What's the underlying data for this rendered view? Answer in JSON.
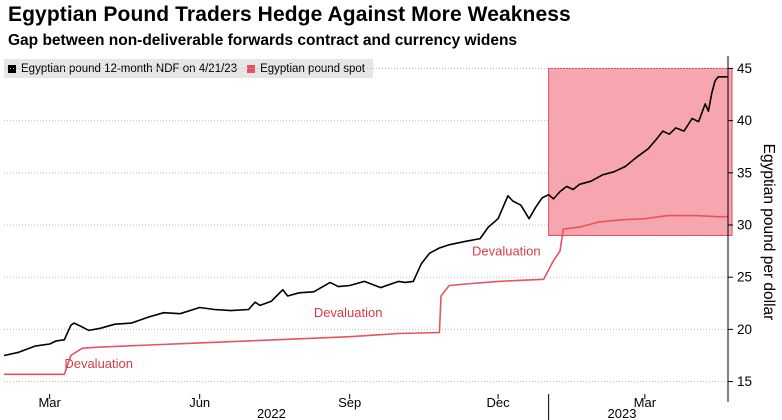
{
  "header": {
    "title": "Egyptian Pound Traders Hedge Against More Weakness",
    "subtitle": "Gap between non-deliverable forwards contract and currency widens"
  },
  "legend": {
    "items": [
      {
        "label": "Egyptian pound 12-month NDF on 4/21/23",
        "color": "#000000"
      },
      {
        "label": "Egyptian pound spot",
        "color": "#e8545e"
      }
    ]
  },
  "chart_data": {
    "type": "line",
    "title": "Egyptian Pound Traders Hedge Against More Weakness",
    "subtitle": "Gap between non-deliverable forwards contract and currency widens",
    "xlabel": "",
    "ylabel": "Egyptian pound per dollar",
    "x_range": [
      "2022-02-01",
      "2023-04-21"
    ],
    "ylim": [
      14,
      46
    ],
    "yticks": [
      15,
      20,
      25,
      30,
      35,
      40,
      45
    ],
    "grid": true,
    "xticks": [
      {
        "date": "2022-03-01",
        "label": "Mar"
      },
      {
        "date": "2022-06-01",
        "label": "Jun"
      },
      {
        "date": "2022-09-01",
        "label": "Sep"
      },
      {
        "date": "2022-12-01",
        "label": "Dec"
      },
      {
        "date": "2023-03-01",
        "label": "Mar"
      }
    ],
    "year_labels": [
      {
        "date": "2022-07-15",
        "label": "2022"
      },
      {
        "date": "2023-02-15",
        "label": "2023"
      }
    ],
    "year_separator": "2023-01-01",
    "highlight": {
      "x_start": "2023-01-01",
      "x_end": "2023-04-21",
      "y_min": 29,
      "y_max": 45,
      "color": "#f26b7a"
    },
    "annotations": [
      {
        "text": "Devaluation",
        "date": "2022-03-10",
        "y": 16.3
      },
      {
        "text": "Devaluation",
        "date": "2022-08-10",
        "y": 21.2
      },
      {
        "text": "Devaluation",
        "date": "2022-11-15",
        "y": 27.1
      }
    ],
    "series": [
      {
        "name": "Egyptian pound 12-month NDF on 4/21/23",
        "color": "#000000",
        "points": [
          [
            "2022-02-01",
            17.5
          ],
          [
            "2022-02-10",
            17.8
          ],
          [
            "2022-02-20",
            18.4
          ],
          [
            "2022-03-01",
            18.6
          ],
          [
            "2022-03-05",
            18.9
          ],
          [
            "2022-03-10",
            19.0
          ],
          [
            "2022-03-14",
            20.4
          ],
          [
            "2022-03-16",
            20.6
          ],
          [
            "2022-03-20",
            20.3
          ],
          [
            "2022-03-25",
            19.9
          ],
          [
            "2022-04-01",
            20.1
          ],
          [
            "2022-04-10",
            20.5
          ],
          [
            "2022-04-20",
            20.6
          ],
          [
            "2022-05-01",
            21.2
          ],
          [
            "2022-05-10",
            21.6
          ],
          [
            "2022-05-20",
            21.5
          ],
          [
            "2022-06-01",
            22.1
          ],
          [
            "2022-06-10",
            21.9
          ],
          [
            "2022-06-20",
            21.8
          ],
          [
            "2022-07-01",
            21.9
          ],
          [
            "2022-07-05",
            22.6
          ],
          [
            "2022-07-08",
            22.3
          ],
          [
            "2022-07-15",
            22.7
          ],
          [
            "2022-07-22",
            23.8
          ],
          [
            "2022-07-25",
            23.2
          ],
          [
            "2022-08-01",
            23.5
          ],
          [
            "2022-08-10",
            23.6
          ],
          [
            "2022-08-20",
            24.5
          ],
          [
            "2022-08-25",
            24.1
          ],
          [
            "2022-09-01",
            24.2
          ],
          [
            "2022-09-10",
            24.6
          ],
          [
            "2022-09-20",
            24.0
          ],
          [
            "2022-10-01",
            24.6
          ],
          [
            "2022-10-05",
            24.5
          ],
          [
            "2022-10-10",
            24.6
          ],
          [
            "2022-10-15",
            26.3
          ],
          [
            "2022-10-20",
            27.3
          ],
          [
            "2022-10-26",
            27.8
          ],
          [
            "2022-11-01",
            28.1
          ],
          [
            "2022-11-10",
            28.4
          ],
          [
            "2022-11-20",
            28.7
          ],
          [
            "2022-11-25",
            29.8
          ],
          [
            "2022-12-01",
            30.6
          ],
          [
            "2022-12-07",
            32.8
          ],
          [
            "2022-12-10",
            32.3
          ],
          [
            "2022-12-15",
            31.9
          ],
          [
            "2022-12-20",
            30.6
          ],
          [
            "2022-12-24",
            31.7
          ],
          [
            "2022-12-28",
            32.6
          ],
          [
            "2023-01-01",
            32.9
          ],
          [
            "2023-01-04",
            32.5
          ],
          [
            "2023-01-08",
            33.2
          ],
          [
            "2023-01-12",
            33.7
          ],
          [
            "2023-01-16",
            33.4
          ],
          [
            "2023-01-20",
            33.9
          ],
          [
            "2023-01-27",
            34.2
          ],
          [
            "2023-02-03",
            34.8
          ],
          [
            "2023-02-10",
            35.1
          ],
          [
            "2023-02-17",
            35.6
          ],
          [
            "2023-02-24",
            36.5
          ],
          [
            "2023-03-03",
            37.3
          ],
          [
            "2023-03-08",
            38.2
          ],
          [
            "2023-03-12",
            39.0
          ],
          [
            "2023-03-16",
            38.7
          ],
          [
            "2023-03-20",
            39.3
          ],
          [
            "2023-03-25",
            39.0
          ],
          [
            "2023-03-30",
            40.2
          ],
          [
            "2023-04-03",
            39.9
          ],
          [
            "2023-04-07",
            41.6
          ],
          [
            "2023-04-09",
            40.9
          ],
          [
            "2023-04-11",
            42.6
          ],
          [
            "2023-04-13",
            43.8
          ],
          [
            "2023-04-15",
            44.2
          ],
          [
            "2023-04-21",
            44.2
          ]
        ]
      },
      {
        "name": "Egyptian pound spot",
        "color": "#e8545e",
        "points": [
          [
            "2022-02-01",
            15.7
          ],
          [
            "2022-03-10",
            15.7
          ],
          [
            "2022-03-14",
            17.5
          ],
          [
            "2022-03-21",
            18.2
          ],
          [
            "2022-04-01",
            18.3
          ],
          [
            "2022-05-01",
            18.5
          ],
          [
            "2022-06-01",
            18.7
          ],
          [
            "2022-07-01",
            18.9
          ],
          [
            "2022-08-01",
            19.1
          ],
          [
            "2022-09-01",
            19.3
          ],
          [
            "2022-10-01",
            19.6
          ],
          [
            "2022-10-26",
            19.7
          ],
          [
            "2022-10-27",
            23.2
          ],
          [
            "2022-11-01",
            24.2
          ],
          [
            "2022-11-15",
            24.4
          ],
          [
            "2022-12-01",
            24.6
          ],
          [
            "2022-12-15",
            24.7
          ],
          [
            "2022-12-29",
            24.8
          ],
          [
            "2023-01-04",
            26.6
          ],
          [
            "2023-01-08",
            27.5
          ],
          [
            "2023-01-10",
            29.6
          ],
          [
            "2023-01-15",
            29.7
          ],
          [
            "2023-01-20",
            29.8
          ],
          [
            "2023-02-01",
            30.3
          ],
          [
            "2023-02-15",
            30.5
          ],
          [
            "2023-03-01",
            30.6
          ],
          [
            "2023-03-15",
            30.9
          ],
          [
            "2023-04-01",
            30.9
          ],
          [
            "2023-04-15",
            30.8
          ],
          [
            "2023-04-21",
            30.8
          ]
        ]
      }
    ]
  }
}
